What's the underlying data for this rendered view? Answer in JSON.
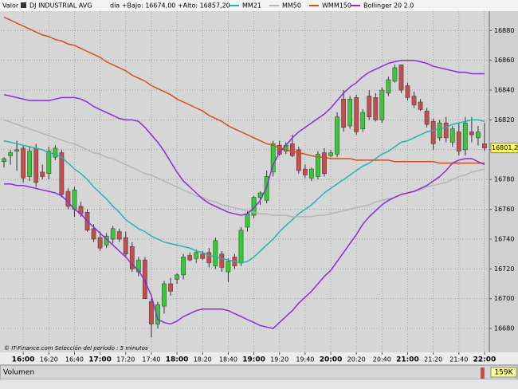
{
  "chart_data": {
    "type": "candlestick",
    "label": "Valor",
    "title": "DJ INDUSTRIAL AVG",
    "subtitle": "día +Bajo: 16674,00 +Alto: 16857,20",
    "footer": "© IT-Finance.com  Selección del período : 5 minutos",
    "volume_title": "Volumen",
    "volume_label": "159K",
    "last_price": {
      "value": 16801.2,
      "label": "16801,20"
    },
    "up_color": "#33cc33",
    "down_color": "#cc4a4a",
    "grid": true,
    "ylim": [
      16664,
      16893
    ],
    "yticks": [
      16680,
      16700,
      16720,
      16740,
      16760,
      16780,
      16800,
      16820,
      16840,
      16860,
      16880
    ],
    "categories": [
      null,
      null,
      null,
      "16:00",
      null,
      null,
      null,
      "16:20",
      null,
      null,
      null,
      "16:40",
      null,
      null,
      null,
      "17:00",
      null,
      null,
      null,
      "17:20",
      null,
      null,
      null,
      "17:40",
      null,
      null,
      null,
      "18:00",
      null,
      null,
      null,
      "18:20",
      null,
      null,
      null,
      "18:40",
      null,
      null,
      null,
      "19:00",
      null,
      null,
      null,
      "19:20",
      null,
      null,
      null,
      "19:40",
      null,
      null,
      null,
      "20:00",
      null,
      null,
      null,
      "20:20",
      null,
      null,
      null,
      "20:40",
      null,
      null,
      null,
      "21:00",
      null,
      null,
      null,
      "21:20",
      null,
      null,
      null,
      "21:40",
      null,
      null,
      null,
      "22:00"
    ],
    "open": [
      16792,
      16796,
      16799,
      16801,
      16782,
      16801,
      16785,
      16784,
      16795,
      16798,
      16772,
      16760,
      16762,
      16758,
      16747,
      16741,
      16736,
      16740,
      16745,
      16741,
      16735,
      16718,
      16726,
      16698,
      16683,
      16695,
      16710,
      16713,
      16716,
      16729,
      16727,
      16730,
      16731,
      16722,
      16730,
      16718,
      16728,
      16724,
      16748,
      16756,
      16768,
      16766,
      16785,
      16803,
      16799,
      16804,
      16800,
      16787,
      16781,
      16782,
      16798,
      16796,
      16797,
      16834,
      16816,
      16835,
      16814,
      16836,
      16835,
      16820,
      16838,
      16846,
      16857,
      16843,
      16836,
      16832,
      16826,
      16819,
      16808,
      16818,
      16805,
      16812,
      16800,
      16812,
      16808,
      16804
    ],
    "high": [
      16795,
      16800,
      16806,
      16803,
      16802,
      16804,
      16790,
      16802,
      16803,
      16800,
      16774,
      16775,
      16765,
      16760,
      16750,
      16745,
      16744,
      16749,
      16747,
      16745,
      16738,
      16728,
      16728,
      16700,
      16698,
      16712,
      16714,
      16717,
      16730,
      16731,
      16733,
      16732,
      16734,
      16741,
      16732,
      16727,
      16730,
      16748,
      16759,
      16769,
      16772,
      16786,
      16806,
      16806,
      16805,
      16810,
      16802,
      16790,
      16788,
      16799,
      16801,
      16800,
      16825,
      16840,
      16836,
      16837,
      16827,
      16840,
      16838,
      16842,
      16849,
      16857.2,
      16857,
      16845,
      16839,
      16834,
      16828,
      16821,
      16820,
      16822,
      16816,
      16818,
      16822,
      16822,
      16816,
      16818
    ],
    "low": [
      16788,
      16790,
      16786,
      16778,
      16779,
      16775,
      16780,
      16780,
      16793,
      16768,
      16760,
      16755,
      16755,
      16745,
      16738,
      16732,
      16734,
      16737,
      16738,
      16728,
      16718,
      16715,
      16700,
      16674,
      16680,
      16690,
      16702,
      16710,
      16713,
      16725,
      16724,
      16726,
      16721,
      16720,
      16718,
      16711,
      16720,
      16722,
      16745,
      16754,
      16763,
      16764,
      16782,
      16796,
      16797,
      16795,
      16784,
      16781,
      16779,
      16780,
      16782,
      16795,
      16795,
      16812,
      16814,
      16810,
      16812,
      16820,
      16819,
      16818,
      16836,
      16845,
      16838,
      16833,
      16828,
      16826,
      16815,
      16800,
      16806,
      16805,
      16802,
      16796,
      16796,
      16805,
      16803,
      16799
    ],
    "close": [
      16794,
      16798,
      16800,
      16781,
      16799,
      16778,
      16782,
      16799,
      16801,
      16770,
      16762,
      16773,
      16757,
      16746,
      16740,
      16734,
      16742,
      16747,
      16740,
      16730,
      16720,
      16726,
      16700,
      16683,
      16696,
      16710,
      16705,
      16716,
      16728,
      16726,
      16731,
      16727,
      16724,
      16739,
      16721,
      16725,
      16722,
      16746,
      16757,
      16768,
      16771,
      16782,
      16804,
      16797,
      16803,
      16796,
      16786,
      16783,
      16787,
      16797,
      16784,
      16798,
      16822,
      16815,
      16834,
      16812,
      16825,
      16822,
      16820,
      16840,
      16847,
      16855,
      16840,
      16835,
      16830,
      16827,
      16817,
      16804,
      16818,
      16808,
      16814,
      16799,
      16818,
      16810,
      16812,
      16801.2
    ],
    "series": [
      {
        "name": "MM21",
        "color": "#22b5b0",
        "values": [
          16806,
          16805,
          16804,
          16803,
          16802,
          16801,
          16800,
          16798,
          16797,
          16795,
          16791,
          16787,
          16784,
          16780,
          16775,
          16771,
          16767,
          16762,
          16758,
          16753,
          16750,
          16747,
          16745,
          16742,
          16740,
          16738,
          16737,
          16736,
          16735,
          16734,
          16732,
          16731,
          16729,
          16728,
          16727,
          16726,
          16725,
          16724,
          16725,
          16728,
          16732,
          16736,
          16740,
          16745,
          16749,
          16753,
          16757,
          16760,
          16763,
          16767,
          16771,
          16774,
          16777,
          16780,
          16783,
          16786,
          16789,
          16791,
          16794,
          16797,
          16799,
          16802,
          16805,
          16806,
          16808,
          16810,
          16812,
          16813,
          16814,
          16815,
          16817,
          16818,
          16819,
          16820,
          16820,
          16819
        ]
      },
      {
        "name": "MM50",
        "color": "#b4b4b4",
        "values": [
          16820,
          16818.5,
          16817,
          16815.5,
          16814,
          16812.5,
          16811,
          16809.5,
          16808,
          16806.5,
          16805,
          16804,
          16802,
          16800,
          16798,
          16797,
          16795,
          16794,
          16792,
          16790,
          16788,
          16786,
          16784,
          16783,
          16781,
          16779,
          16777,
          16775,
          16773,
          16771,
          16769,
          16768,
          16766,
          16765,
          16763,
          16762,
          16761,
          16760,
          16759,
          16758,
          16757,
          16757,
          16756,
          16756,
          16756,
          16755,
          16755,
          16755,
          16755,
          16756,
          16756,
          16757,
          16758,
          16759,
          16760,
          16761,
          16762,
          16763,
          16765,
          16766,
          16767,
          16768,
          16770,
          16771,
          16772,
          16773,
          16775,
          16776,
          16777,
          16778,
          16780,
          16782,
          16783,
          16785,
          16786,
          16787
        ]
      },
      {
        "name": "WMM150",
        "color": "#d2501e",
        "values": [
          16889,
          16887,
          16885,
          16883,
          16881,
          16879,
          16877,
          16876,
          16874,
          16873,
          16871,
          16870,
          16868,
          16866,
          16864,
          16862,
          16859,
          16857,
          16855,
          16853,
          16850,
          16848,
          16846,
          16843,
          16841,
          16839,
          16837,
          16834,
          16832,
          16830,
          16828,
          16826,
          16823,
          16821,
          16819,
          16816,
          16814,
          16812,
          16810,
          16808,
          16806,
          16804,
          16803,
          16801,
          16800,
          16799,
          16798,
          16797,
          16796,
          16795,
          16795,
          16794,
          16794,
          16794,
          16794,
          16793,
          16793,
          16793,
          16793,
          16793,
          16793,
          16792,
          16792,
          16792,
          16792,
          16792,
          16792,
          16792,
          16791,
          16791,
          16791,
          16791,
          16791,
          16791,
          16791,
          16791
        ]
      },
      {
        "name": "Bollinger 20 2.0",
        "color": "#8a2be2",
        "upper": [
          16837,
          16836,
          16835,
          16834,
          16833,
          16833,
          16833,
          16833,
          16834,
          16835,
          16835,
          16835,
          16834,
          16832,
          16829,
          16827,
          16825,
          16823,
          16821,
          16820,
          16820,
          16819,
          16815,
          16810,
          16805,
          16799,
          16792,
          16785,
          16779,
          16775,
          16771,
          16767,
          16764,
          16762,
          16760,
          16758,
          16757,
          16756,
          16757,
          16761,
          16766,
          16775,
          16790,
          16798,
          16803,
          16808,
          16812,
          16815,
          16818,
          16821,
          16824,
          16828,
          16833,
          16838,
          16842,
          16845,
          16849,
          16852,
          16854,
          16856,
          16858,
          16859,
          16860,
          16860,
          16860,
          16859,
          16858,
          16856,
          16855,
          16854,
          16853,
          16852,
          16852,
          16851,
          16851,
          16851
        ],
        "lower": [
          16777,
          16777,
          16776,
          16776,
          16775,
          16774,
          16773,
          16772,
          16771,
          16769,
          16765,
          16760,
          16757,
          16752,
          16748,
          16744,
          16740,
          16736,
          16732,
          16728,
          16723,
          16719,
          16712,
          16702,
          16686,
          16684,
          16683,
          16685,
          16688,
          16690,
          16692,
          16693,
          16693,
          16693,
          16693,
          16692,
          16690,
          16688,
          16686,
          16684,
          16682,
          16681,
          16680,
          16684,
          16688,
          16692,
          16697,
          16701,
          16705,
          16710,
          16715,
          16719,
          16725,
          16731,
          16737,
          16743,
          16750,
          16755,
          16759,
          16763,
          16766,
          16768,
          16770,
          16771,
          16772,
          16774,
          16776,
          16779,
          16782,
          16786,
          16791,
          16793,
          16794,
          16794,
          16792,
          16790
        ]
      }
    ]
  }
}
